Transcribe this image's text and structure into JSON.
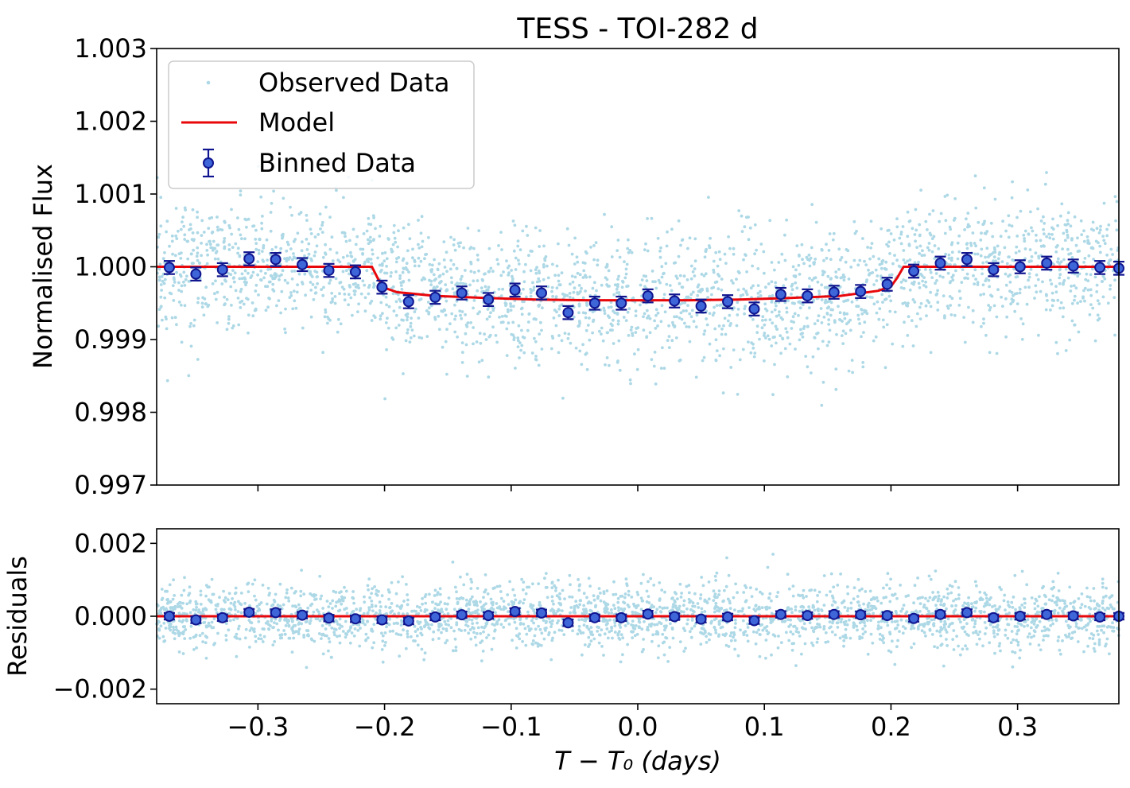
{
  "colors": {
    "observed": "#add8e6",
    "model": "#e8070b",
    "binned_edge": "#10158f",
    "binned_face": "#3e66d8"
  },
  "chart_data": {
    "type": "scatter",
    "title": "TESS - TOI-282 d",
    "xlabel": "T − T₀ (days)",
    "xlim": [
      -0.38,
      0.38
    ],
    "xticks": [
      -0.3,
      -0.2,
      -0.1,
      0.0,
      0.1,
      0.2,
      0.3
    ],
    "xtick_labels": [
      "−0.3",
      "−0.2",
      "−0.1",
      "0.0",
      "0.1",
      "0.2",
      "0.3"
    ],
    "legend": {
      "location": "upper-left",
      "entries": [
        "Observed Data",
        "Model",
        "Binned Data"
      ]
    },
    "panels": [
      {
        "name": "flux",
        "ylabel": "Normalised Flux",
        "ylim": [
          0.997,
          1.003
        ],
        "yticks": [
          0.997,
          0.998,
          0.999,
          1.0,
          1.001,
          1.002,
          1.003
        ],
        "ytick_labels": [
          "0.997",
          "0.998",
          "0.999",
          "1.000",
          "1.001",
          "1.002",
          "1.003"
        ],
        "observed": {
          "center_level": 1.0,
          "scatter_sd": 0.00045,
          "n_points": 2600
        },
        "model": {
          "x": [
            -0.38,
            -0.21,
            -0.205,
            -0.2,
            -0.19,
            -0.16,
            -0.12,
            -0.08,
            -0.04,
            0.0,
            0.04,
            0.08,
            0.12,
            0.16,
            0.19,
            0.2,
            0.205,
            0.21,
            0.38
          ],
          "y": [
            1.0,
            1.0,
            0.99983,
            0.99971,
            0.99965,
            0.9996,
            0.99957,
            0.99955,
            0.99954,
            0.99954,
            0.99954,
            0.99955,
            0.99957,
            0.9996,
            0.99967,
            0.99973,
            0.99985,
            1.0,
            1.0
          ]
        },
        "binned": {
          "x": [
            -0.37,
            -0.349,
            -0.328,
            -0.307,
            -0.286,
            -0.265,
            -0.244,
            -0.223,
            -0.202,
            -0.181,
            -0.16,
            -0.139,
            -0.118,
            -0.097,
            -0.076,
            -0.055,
            -0.034,
            -0.013,
            0.008,
            0.029,
            0.05,
            0.071,
            0.092,
            0.113,
            0.134,
            0.155,
            0.176,
            0.197,
            0.218,
            0.239,
            0.26,
            0.281,
            0.302,
            0.323,
            0.344,
            0.365,
            0.38
          ],
          "y": [
            0.99999,
            0.9999,
            0.99996,
            1.00011,
            1.0001,
            1.00003,
            0.99995,
            0.99993,
            0.99972,
            0.99952,
            0.99958,
            0.99964,
            0.99955,
            0.99968,
            0.99964,
            0.99937,
            0.9995,
            0.9995,
            0.9996,
            0.99953,
            0.99946,
            0.99952,
            0.99942,
            0.99962,
            0.9996,
            0.99965,
            0.99966,
            0.99976,
            0.99994,
            1.00005,
            1.0001,
            0.99996,
            1.0,
            1.00005,
            1.00001,
            0.99999,
            0.99998
          ],
          "err": 9e-05
        }
      },
      {
        "name": "residuals",
        "ylabel": "Residuals",
        "ylim": [
          -0.0024,
          0.0024
        ],
        "yticks": [
          -0.002,
          0.0,
          0.002
        ],
        "ytick_labels": [
          "−0.002",
          "0.000",
          "0.002"
        ],
        "observed": {
          "center_level": 0.0,
          "scatter_sd": 0.00045,
          "n_points": 2600
        },
        "model": {
          "x": [
            -0.38,
            0.38
          ],
          "y": [
            0.0,
            0.0
          ]
        },
        "binned": {
          "x": [
            -0.37,
            -0.349,
            -0.328,
            -0.307,
            -0.286,
            -0.265,
            -0.244,
            -0.223,
            -0.202,
            -0.181,
            -0.16,
            -0.139,
            -0.118,
            -0.097,
            -0.076,
            -0.055,
            -0.034,
            -0.013,
            0.008,
            0.029,
            0.05,
            0.071,
            0.092,
            0.113,
            0.134,
            0.155,
            0.176,
            0.197,
            0.218,
            0.239,
            0.26,
            0.281,
            0.302,
            0.323,
            0.344,
            0.365,
            0.38
          ],
          "y": [
            0.0,
            -0.0001,
            -4e-05,
            0.00011,
            0.0001,
            3e-05,
            -5e-05,
            -7e-05,
            -0.0001,
            -0.00013,
            -2e-05,
            4e-05,
            2e-05,
            0.00013,
            9e-05,
            -0.00018,
            -4e-05,
            -4e-05,
            6e-05,
            -1e-05,
            -8e-05,
            -2e-05,
            -0.00012,
            5e-05,
            2e-05,
            5e-05,
            4e-05,
            2e-05,
            -6e-05,
            5e-05,
            0.0001,
            -4e-05,
            0.0,
            5e-05,
            1e-05,
            -2e-05,
            0.0
          ],
          "err": 9e-05
        }
      }
    ]
  }
}
